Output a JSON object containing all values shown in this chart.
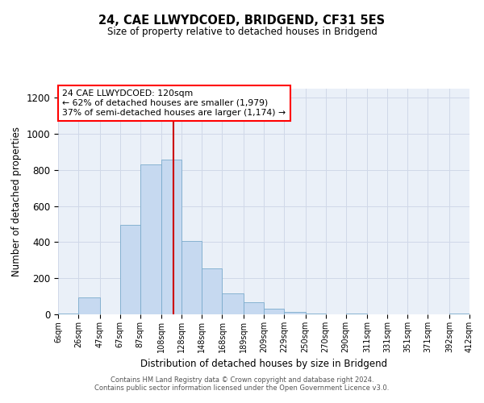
{
  "title": "24, CAE LLWYDCOED, BRIDGEND, CF31 5ES",
  "subtitle": "Size of property relative to detached houses in Bridgend",
  "xlabel": "Distribution of detached houses by size in Bridgend",
  "ylabel": "Number of detached properties",
  "bar_color": "#c6d9f0",
  "bar_edge_color": "#7aabcc",
  "grid_color": "#d0d8e8",
  "background_color": "#eaf0f8",
  "annotation_text": "24 CAE LLWYDCOED: 120sqm\n← 62% of detached houses are smaller (1,979)\n37% of semi-detached houses are larger (1,174) →",
  "vline_x": 120,
  "vline_color": "#cc0000",
  "footer_line1": "Contains HM Land Registry data © Crown copyright and database right 2024.",
  "footer_line2": "Contains public sector information licensed under the Open Government Licence v3.0.",
  "bin_edges": [
    6,
    26,
    47,
    67,
    87,
    108,
    128,
    148,
    168,
    189,
    209,
    229,
    250,
    270,
    290,
    311,
    331,
    351,
    371,
    392,
    412
  ],
  "bin_heights": [
    5,
    95,
    0,
    495,
    830,
    855,
    405,
    255,
    115,
    65,
    30,
    15,
    5,
    0,
    5,
    0,
    0,
    0,
    0,
    5
  ],
  "xlim_left": 6,
  "xlim_right": 412,
  "ylim_top": 1250,
  "yticks": [
    0,
    200,
    400,
    600,
    800,
    1000,
    1200
  ],
  "tick_labels": [
    "6sqm",
    "26sqm",
    "47sqm",
    "67sqm",
    "87sqm",
    "108sqm",
    "128sqm",
    "148sqm",
    "168sqm",
    "189sqm",
    "209sqm",
    "229sqm",
    "250sqm",
    "270sqm",
    "290sqm",
    "311sqm",
    "331sqm",
    "351sqm",
    "371sqm",
    "392sqm",
    "412sqm"
  ]
}
